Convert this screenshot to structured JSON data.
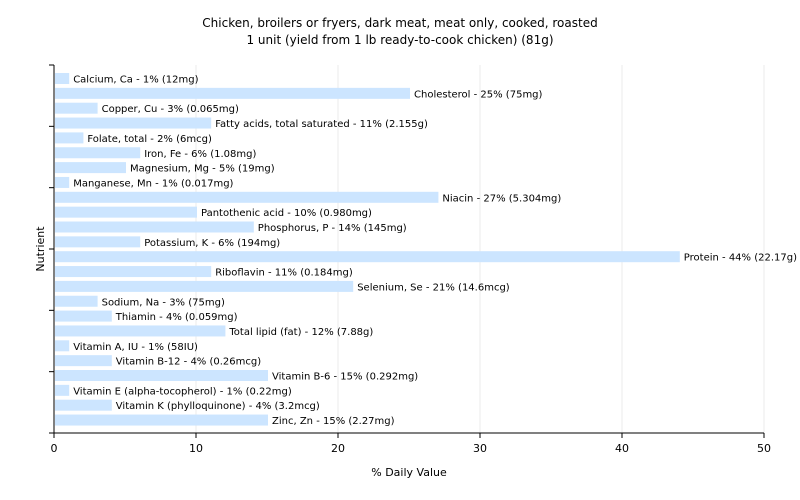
{
  "chart_data": {
    "type": "bar",
    "orientation": "horizontal",
    "title": "Chicken, broilers or fryers, dark meat, meat only, cooked, roasted",
    "subtitle": "1 unit (yield from 1 lb ready-to-cook chicken) (81g)",
    "xlabel": "% Daily Value",
    "ylabel": "Nutrient",
    "xlim": [
      0,
      50
    ],
    "xticks": [
      0,
      10,
      20,
      30,
      40,
      50
    ],
    "grid": true,
    "bar_color": "#cce5ff",
    "grid_color": "#ebebeb",
    "categories": [
      "Calcium, Ca",
      "Cholesterol",
      "Copper, Cu",
      "Fatty acids, total saturated",
      "Folate, total",
      "Iron, Fe",
      "Magnesium, Mg",
      "Manganese, Mn",
      "Niacin",
      "Pantothenic acid",
      "Phosphorus, P",
      "Potassium, K",
      "Protein",
      "Riboflavin",
      "Selenium, Se",
      "Sodium, Na",
      "Thiamin",
      "Total lipid (fat)",
      "Vitamin A, IU",
      "Vitamin B-12",
      "Vitamin B-6",
      "Vitamin E (alpha-tocopherol)",
      "Vitamin K (phylloquinone)",
      "Zinc, Zn"
    ],
    "values": [
      1,
      25,
      3,
      11,
      2,
      6,
      5,
      1,
      27,
      10,
      14,
      6,
      44,
      11,
      21,
      3,
      4,
      12,
      1,
      4,
      15,
      1,
      4,
      15
    ],
    "labels": [
      "Calcium, Ca - 1% (12mg)",
      "Cholesterol - 25% (75mg)",
      "Copper, Cu - 3% (0.065mg)",
      "Fatty acids, total saturated - 11% (2.155g)",
      "Folate, total - 2% (6mcg)",
      "Iron, Fe - 6% (1.08mg)",
      "Magnesium, Mg - 5% (19mg)",
      "Manganese, Mn - 1% (0.017mg)",
      "Niacin - 27% (5.304mg)",
      "Pantothenic acid - 10% (0.980mg)",
      "Phosphorus, P - 14% (145mg)",
      "Potassium, K - 6% (194mg)",
      "Protein - 44% (22.17g)",
      "Riboflavin - 11% (0.184mg)",
      "Selenium, Se - 21% (14.6mcg)",
      "Sodium, Na - 3% (75mg)",
      "Thiamin - 4% (0.059mg)",
      "Total lipid (fat) - 12% (7.88g)",
      "Vitamin A, IU - 1% (58IU)",
      "Vitamin B-12 - 4% (0.26mcg)",
      "Vitamin B-6 - 15% (0.292mg)",
      "Vitamin E (alpha-tocopherol) - 1% (0.22mg)",
      "Vitamin K (phylloquinone) - 4% (3.2mcg)",
      "Zinc, Zn - 15% (2.27mg)"
    ]
  }
}
